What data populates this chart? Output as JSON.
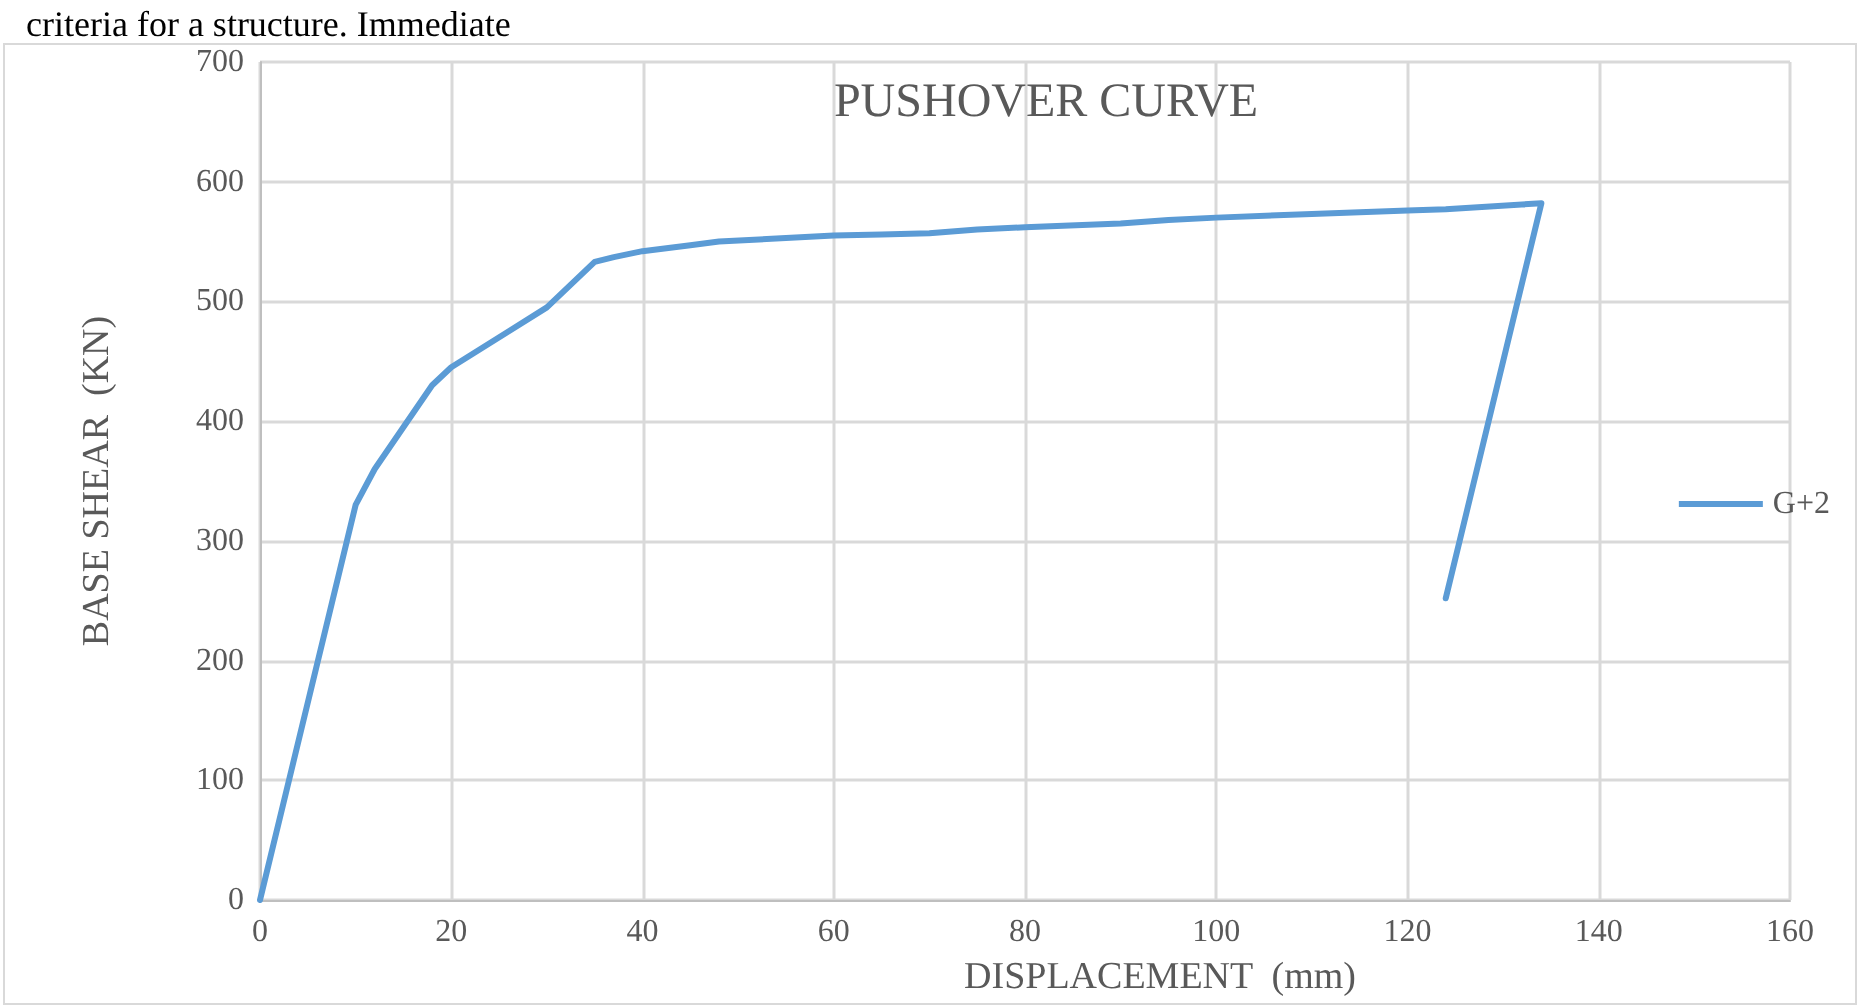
{
  "chart_data": {
    "type": "line",
    "title": "PUSHOVER CURVE",
    "xlabel": "DISPLACEMENT  (mm)",
    "ylabel": "BASE SHEAR  (KN)",
    "annotations": [
      "criteria for a structure. Immediate"
    ],
    "series": [
      {
        "name": "G+2",
        "color": "#5b9bd5",
        "x": [
          0,
          10,
          12,
          18,
          20,
          30,
          35,
          37,
          40,
          45,
          48,
          55,
          60,
          65,
          70,
          75,
          80,
          90,
          95,
          100,
          110,
          120,
          124,
          134,
          124
        ],
        "values": [
          0,
          330,
          360,
          430,
          445,
          495,
          533,
          537,
          542,
          547,
          550,
          553,
          555,
          556,
          557,
          560,
          562,
          565,
          568,
          570,
          573,
          576,
          577,
          582,
          252
        ]
      }
    ],
    "xlim": [
      0,
      160
    ],
    "xticks": [
      0,
      20,
      40,
      60,
      80,
      100,
      120,
      140,
      160
    ],
    "ylim": [
      0,
      700
    ],
    "yticks": [
      0,
      100,
      200,
      300,
      400,
      500,
      600,
      700
    ],
    "grid": true,
    "legend": "right",
    "marker": "none",
    "line_style": "solid"
  }
}
